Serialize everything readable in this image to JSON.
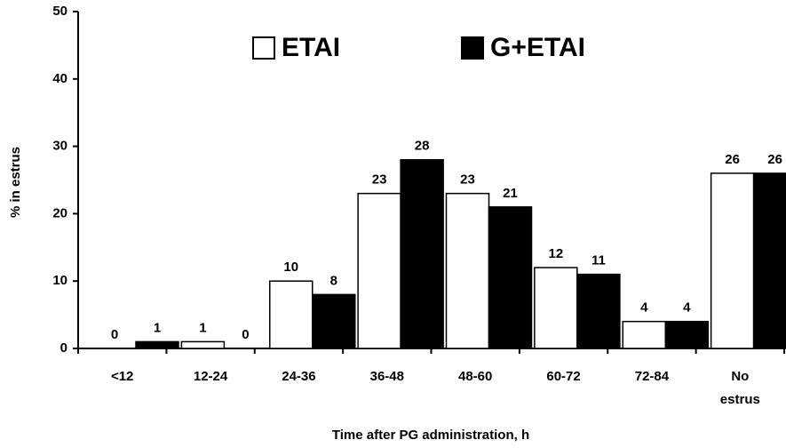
{
  "chart_data": {
    "type": "bar",
    "x_label": "Time after PG administration, h",
    "y_label": "% in estrus",
    "categories": [
      "<12",
      "12-24",
      "24-36",
      "36-48",
      "48-60",
      "60-72",
      "72-84",
      "No estrus"
    ],
    "series": [
      {
        "name": "ETAI",
        "color": "#ffffff",
        "values": [
          0,
          1,
          10,
          23,
          23,
          12,
          4,
          26
        ]
      },
      {
        "name": "G+ETAI",
        "color": "#000000",
        "values": [
          1,
          0,
          8,
          28,
          21,
          11,
          4,
          26
        ]
      }
    ],
    "ylim": [
      0,
      50
    ],
    "yticks": [
      0,
      10,
      20,
      30,
      40,
      50
    ],
    "grid": false
  }
}
